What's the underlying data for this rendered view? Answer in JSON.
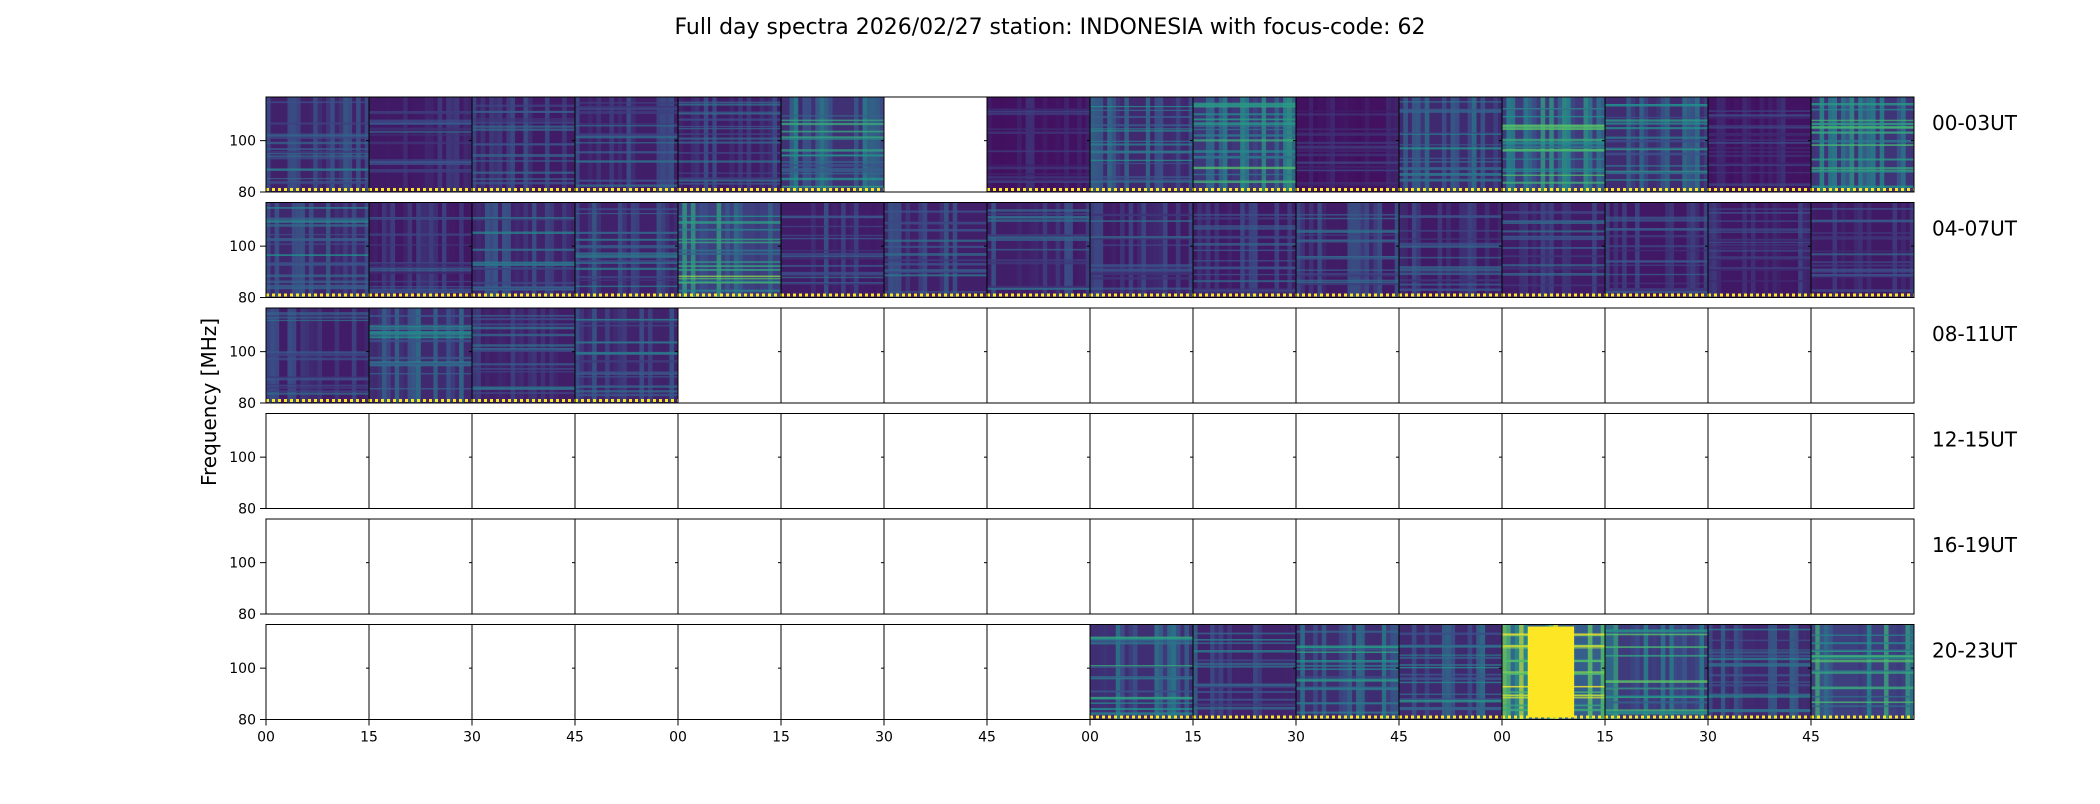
{
  "chart_data": {
    "type": "heatmap",
    "title": "Full day spectra 2026/02/27 station: INDONESIA with focus-code: 62",
    "ylabel": "Frequency [MHz]",
    "xlabel": "",
    "ylim": [
      80,
      117
    ],
    "yticks": [
      "80",
      "100"
    ],
    "xticks": [
      "00",
      "15",
      "30",
      "45",
      "00",
      "15",
      "30",
      "45",
      "00",
      "15",
      "30",
      "45",
      "00",
      "15",
      "30",
      "45"
    ],
    "colormap": [
      "#440154",
      "#3b528b",
      "#21918c",
      "#5ec962",
      "#fde725"
    ],
    "rows": [
      {
        "label": "00-03UT",
        "panels": [
          {
            "has_data": true,
            "intensity": 0.28
          },
          {
            "has_data": true,
            "intensity": 0.22
          },
          {
            "has_data": true,
            "intensity": 0.24
          },
          {
            "has_data": true,
            "intensity": 0.26
          },
          {
            "has_data": true,
            "intensity": 0.25
          },
          {
            "has_data": true,
            "intensity": 0.42
          },
          {
            "has_data": false,
            "intensity": 0
          },
          {
            "has_data": true,
            "intensity": 0.15
          },
          {
            "has_data": true,
            "intensity": 0.35
          },
          {
            "has_data": true,
            "intensity": 0.48
          },
          {
            "has_data": true,
            "intensity": 0.14
          },
          {
            "has_data": true,
            "intensity": 0.36
          },
          {
            "has_data": true,
            "intensity": 0.5
          },
          {
            "has_data": true,
            "intensity": 0.38
          },
          {
            "has_data": true,
            "intensity": 0.16
          },
          {
            "has_data": true,
            "intensity": 0.45
          }
        ]
      },
      {
        "label": "04-07UT",
        "panels": [
          {
            "has_data": true,
            "intensity": 0.34
          },
          {
            "has_data": true,
            "intensity": 0.2
          },
          {
            "has_data": true,
            "intensity": 0.3
          },
          {
            "has_data": true,
            "intensity": 0.28
          },
          {
            "has_data": true,
            "intensity": 0.55
          },
          {
            "has_data": true,
            "intensity": 0.25
          },
          {
            "has_data": true,
            "intensity": 0.27
          },
          {
            "has_data": true,
            "intensity": 0.26
          },
          {
            "has_data": true,
            "intensity": 0.23
          },
          {
            "has_data": true,
            "intensity": 0.22
          },
          {
            "has_data": true,
            "intensity": 0.24
          },
          {
            "has_data": true,
            "intensity": 0.22
          },
          {
            "has_data": true,
            "intensity": 0.25
          },
          {
            "has_data": true,
            "intensity": 0.2
          },
          {
            "has_data": true,
            "intensity": 0.2
          },
          {
            "has_data": true,
            "intensity": 0.22
          }
        ]
      },
      {
        "label": "08-11UT",
        "panels": [
          {
            "has_data": true,
            "intensity": 0.25
          },
          {
            "has_data": true,
            "intensity": 0.35
          },
          {
            "has_data": true,
            "intensity": 0.26
          },
          {
            "has_data": true,
            "intensity": 0.3
          },
          {
            "has_data": false,
            "intensity": 0
          },
          {
            "has_data": false,
            "intensity": 0
          },
          {
            "has_data": false,
            "intensity": 0
          },
          {
            "has_data": false,
            "intensity": 0
          },
          {
            "has_data": false,
            "intensity": 0
          },
          {
            "has_data": false,
            "intensity": 0
          },
          {
            "has_data": false,
            "intensity": 0
          },
          {
            "has_data": false,
            "intensity": 0
          },
          {
            "has_data": false,
            "intensity": 0
          },
          {
            "has_data": false,
            "intensity": 0
          },
          {
            "has_data": false,
            "intensity": 0
          },
          {
            "has_data": false,
            "intensity": 0
          }
        ]
      },
      {
        "label": "12-15UT",
        "panels": [
          {
            "has_data": false,
            "intensity": 0
          },
          {
            "has_data": false,
            "intensity": 0
          },
          {
            "has_data": false,
            "intensity": 0
          },
          {
            "has_data": false,
            "intensity": 0
          },
          {
            "has_data": false,
            "intensity": 0
          },
          {
            "has_data": false,
            "intensity": 0
          },
          {
            "has_data": false,
            "intensity": 0
          },
          {
            "has_data": false,
            "intensity": 0
          },
          {
            "has_data": false,
            "intensity": 0
          },
          {
            "has_data": false,
            "intensity": 0
          },
          {
            "has_data": false,
            "intensity": 0
          },
          {
            "has_data": false,
            "intensity": 0
          },
          {
            "has_data": false,
            "intensity": 0
          },
          {
            "has_data": false,
            "intensity": 0
          },
          {
            "has_data": false,
            "intensity": 0
          },
          {
            "has_data": false,
            "intensity": 0
          }
        ]
      },
      {
        "label": "16-19UT",
        "panels": [
          {
            "has_data": false,
            "intensity": 0
          },
          {
            "has_data": false,
            "intensity": 0
          },
          {
            "has_data": false,
            "intensity": 0
          },
          {
            "has_data": false,
            "intensity": 0
          },
          {
            "has_data": false,
            "intensity": 0
          },
          {
            "has_data": false,
            "intensity": 0
          },
          {
            "has_data": false,
            "intensity": 0
          },
          {
            "has_data": false,
            "intensity": 0
          },
          {
            "has_data": false,
            "intensity": 0
          },
          {
            "has_data": false,
            "intensity": 0
          },
          {
            "has_data": false,
            "intensity": 0
          },
          {
            "has_data": false,
            "intensity": 0
          },
          {
            "has_data": false,
            "intensity": 0
          },
          {
            "has_data": false,
            "intensity": 0
          },
          {
            "has_data": false,
            "intensity": 0
          },
          {
            "has_data": false,
            "intensity": 0
          }
        ]
      },
      {
        "label": "20-23UT",
        "panels": [
          {
            "has_data": false,
            "intensity": 0
          },
          {
            "has_data": false,
            "intensity": 0
          },
          {
            "has_data": false,
            "intensity": 0
          },
          {
            "has_data": false,
            "intensity": 0
          },
          {
            "has_data": false,
            "intensity": 0
          },
          {
            "has_data": false,
            "intensity": 0
          },
          {
            "has_data": false,
            "intensity": 0
          },
          {
            "has_data": false,
            "intensity": 0
          },
          {
            "has_data": true,
            "intensity": 0.4
          },
          {
            "has_data": true,
            "intensity": 0.3
          },
          {
            "has_data": true,
            "intensity": 0.38
          },
          {
            "has_data": true,
            "intensity": 0.36
          },
          {
            "has_data": true,
            "intensity": 0.85
          },
          {
            "has_data": true,
            "intensity": 0.5
          },
          {
            "has_data": true,
            "intensity": 0.35
          },
          {
            "has_data": true,
            "intensity": 0.55
          }
        ]
      }
    ]
  }
}
